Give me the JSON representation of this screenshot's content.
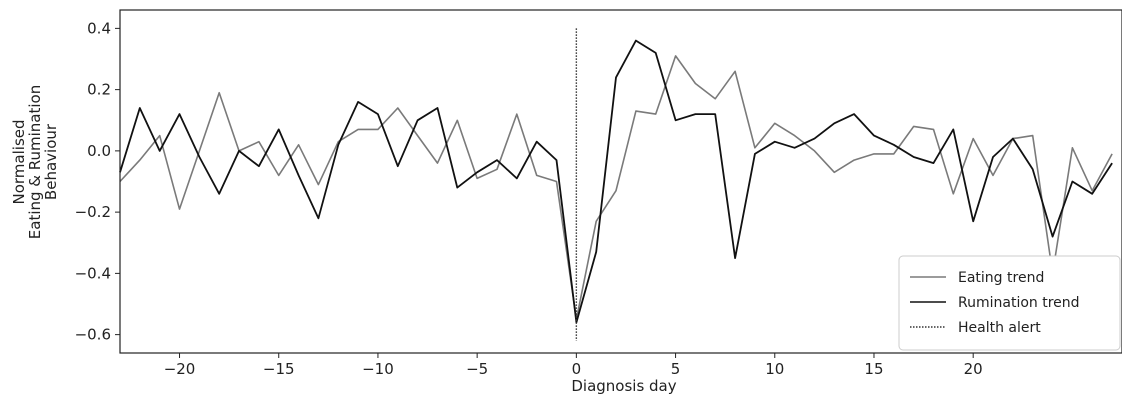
{
  "chart_data": {
    "type": "line",
    "title": "",
    "xlabel": "Diagnosis day",
    "ylabel_lines": [
      "Normalised",
      "Eating & Rumination",
      "Behaviour"
    ],
    "xlim": [
      -23,
      27.5
    ],
    "ylim": [
      -0.66,
      0.46
    ],
    "x_ticks": [
      -20,
      -15,
      -10,
      -5,
      0,
      5,
      10,
      15,
      20
    ],
    "x_tick_labels": [
      "−20",
      "−15",
      "−10",
      "−5",
      "0",
      "5",
      "10",
      "15",
      "20"
    ],
    "y_ticks": [
      0.4,
      0.2,
      0.0,
      -0.2,
      -0.4,
      -0.6
    ],
    "y_tick_labels": [
      "0.4",
      "0.2",
      "0.0",
      "−0.2",
      "−0.4",
      "−0.6"
    ],
    "grid": false,
    "legend_position": "bottom-right",
    "x": [
      -23,
      -22,
      -21,
      -20,
      -19,
      -18,
      -17,
      -16,
      -15,
      -14,
      -13,
      -12,
      -11,
      -10,
      -9,
      -8,
      -7,
      -6,
      -5,
      -4,
      -3,
      -2,
      -1,
      0,
      1,
      2,
      3,
      4,
      5,
      6,
      7,
      8,
      9,
      10,
      11,
      12,
      13,
      14,
      15,
      16,
      17,
      18,
      19,
      20,
      21,
      22,
      23,
      24,
      25,
      26,
      27
    ],
    "series": [
      {
        "name": "Eating trend",
        "color": "#7a7a7a",
        "values": [
          -0.1,
          -0.03,
          0.05,
          -0.19,
          0.0,
          0.19,
          0.0,
          0.03,
          -0.08,
          0.02,
          -0.11,
          0.03,
          0.07,
          0.07,
          0.14,
          0.05,
          -0.04,
          0.1,
          -0.09,
          -0.06,
          0.12,
          -0.08,
          -0.1,
          -0.55,
          -0.23,
          -0.13,
          0.13,
          0.12,
          0.31,
          0.22,
          0.17,
          0.26,
          0.01,
          0.09,
          0.05,
          0.0,
          -0.07,
          -0.03,
          -0.01,
          -0.01,
          0.08,
          0.07,
          -0.14,
          0.04,
          -0.08,
          0.04,
          0.05,
          -0.4,
          0.01,
          -0.13,
          -0.01
        ]
      },
      {
        "name": "Rumination trend",
        "color": "#111111",
        "values": [
          -0.07,
          0.14,
          0.0,
          0.12,
          -0.02,
          -0.14,
          0.0,
          -0.05,
          0.07,
          -0.08,
          -0.22,
          0.02,
          0.16,
          0.12,
          -0.05,
          0.1,
          0.14,
          -0.12,
          -0.07,
          -0.03,
          -0.09,
          0.03,
          -0.03,
          -0.56,
          -0.33,
          0.24,
          0.36,
          0.32,
          0.1,
          0.12,
          0.12,
          -0.35,
          -0.01,
          0.03,
          0.01,
          0.04,
          0.09,
          0.12,
          0.05,
          0.02,
          -0.02,
          -0.04,
          0.07,
          -0.23,
          -0.02,
          0.04,
          -0.06,
          -0.28,
          -0.1,
          -0.14,
          -0.04
        ]
      }
    ],
    "vline": {
      "name": "Health alert",
      "x": 0,
      "y_range": [
        -0.62,
        0.4
      ],
      "style": "dotted",
      "color": "#333333"
    }
  }
}
